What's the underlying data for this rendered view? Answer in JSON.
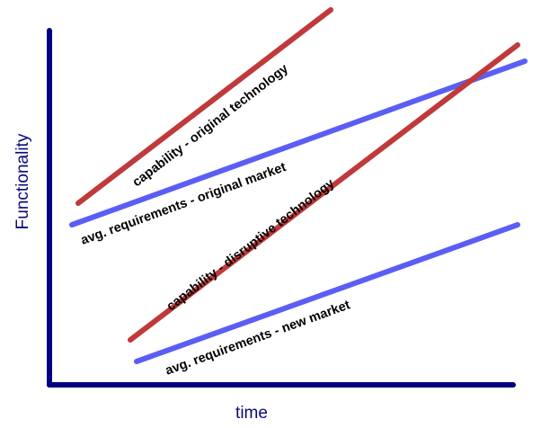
{
  "axes": {
    "x_label": "time",
    "y_label": "Functionality",
    "color": "#000080"
  },
  "lines": [
    {
      "id": "capability-original",
      "label": "capability - original technology",
      "color": "#c0393b"
    },
    {
      "id": "requirements-original",
      "label": "avg. requirements - original market",
      "color": "#5a5ef5"
    },
    {
      "id": "capability-disruptive",
      "label": "capability - disruptive technology",
      "color": "#c0393b"
    },
    {
      "id": "requirements-new",
      "label": "avg. requirements - new market",
      "color": "#5a5ef5"
    }
  ]
}
